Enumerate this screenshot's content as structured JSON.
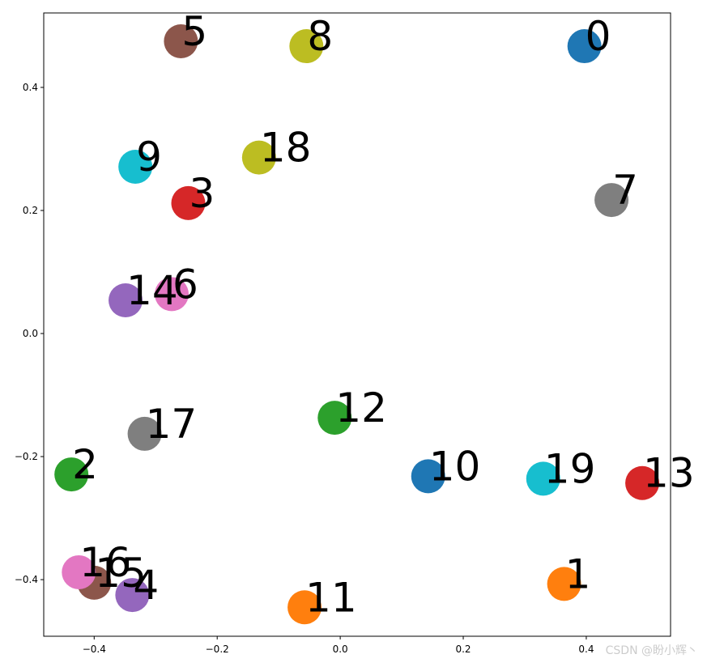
{
  "chart_data": {
    "type": "scatter",
    "labels": [
      "0",
      "1",
      "2",
      "3",
      "4",
      "5",
      "6",
      "7",
      "8",
      "9",
      "10",
      "11",
      "12",
      "13",
      "14",
      "15",
      "16",
      "17",
      "18",
      "19"
    ],
    "x": [
      0.397,
      0.364,
      -0.437,
      -0.247,
      -0.338,
      -0.259,
      -0.274,
      0.441,
      -0.055,
      -0.333,
      0.143,
      -0.058,
      -0.009,
      0.491,
      -0.349,
      -0.4,
      -0.425,
      -0.318,
      -0.132,
      0.33
    ],
    "y": [
      0.467,
      -0.407,
      -0.229,
      0.212,
      -0.425,
      0.475,
      0.064,
      0.217,
      0.467,
      0.271,
      -0.232,
      -0.445,
      -0.137,
      -0.243,
      0.054,
      -0.405,
      -0.388,
      -0.163,
      0.286,
      -0.236
    ],
    "colors": [
      "#1f77b4",
      "#ff7f0e",
      "#2ca02c",
      "#d62728",
      "#9467bd",
      "#8c564b",
      "#e377c2",
      "#7f7f7f",
      "#bcbd22",
      "#17becf",
      "#1f77b4",
      "#ff7f0e",
      "#2ca02c",
      "#d62728",
      "#9467bd",
      "#8c564b",
      "#e377c2",
      "#7f7f7f",
      "#bcbd22",
      "#17becf"
    ],
    "xlim": [
      -0.482,
      0.537
    ],
    "ylim": [
      -0.492,
      0.521
    ],
    "xticks": [
      {
        "value": -0.4,
        "label": "−0.4"
      },
      {
        "value": -0.2,
        "label": "−0.2"
      },
      {
        "value": 0,
        "label": "0.0"
      },
      0.2,
      0.4
    ],
    "yticks": [
      {
        "value": -0.4,
        "label": "−0.4"
      },
      {
        "value": -0.2,
        "label": "−0.2"
      },
      {
        "value": 0,
        "label": "0.0"
      },
      0.2,
      0.4
    ],
    "watermark": "CSDN @盼小辉丶"
  }
}
